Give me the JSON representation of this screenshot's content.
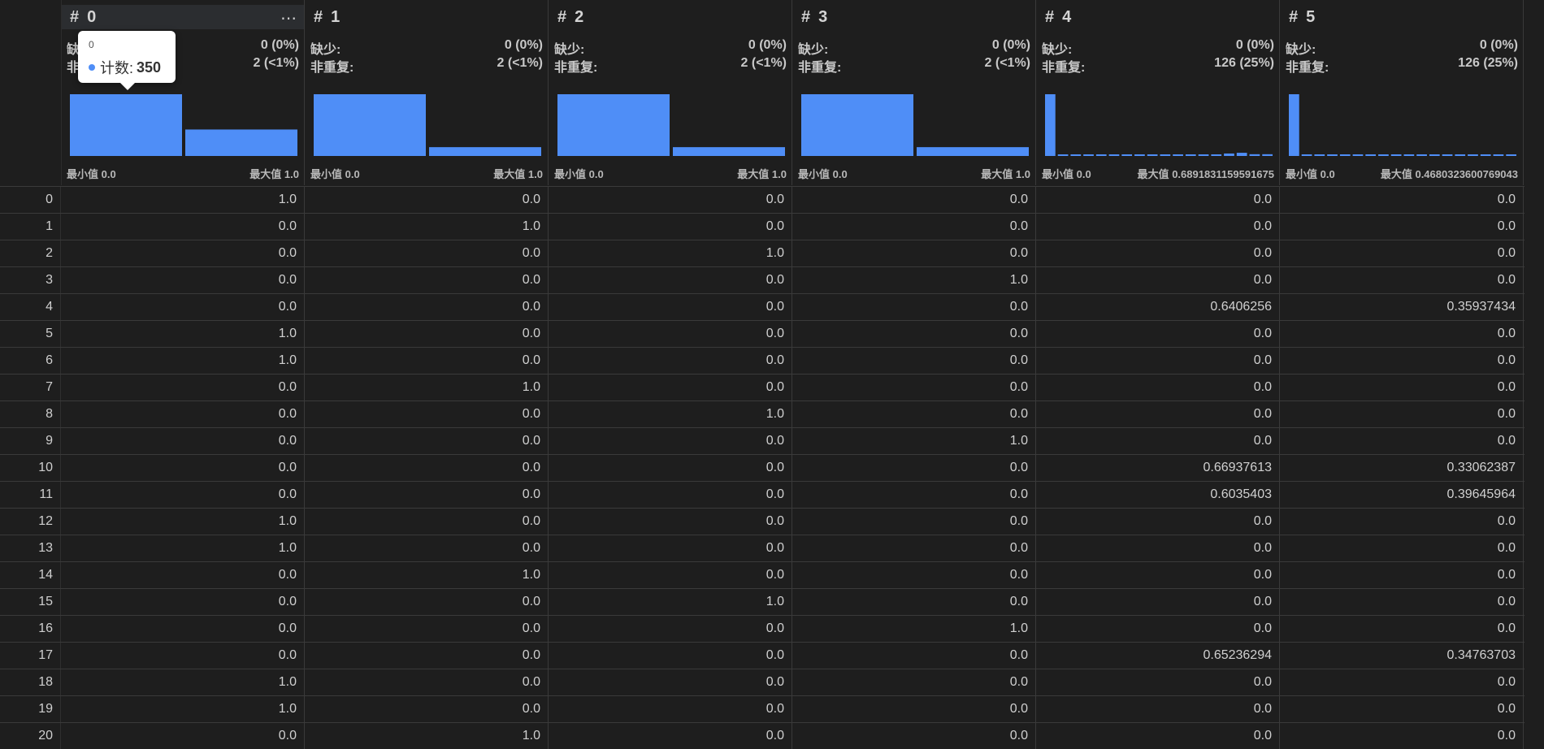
{
  "accent_color": "#4f8ef7",
  "labels": {
    "missing": "缺少:",
    "distinct": "非重复:",
    "min_prefix": "最小值",
    "max_prefix": "最大值",
    "col_hash": "#"
  },
  "columns": [
    {
      "name": "0",
      "missing": "0 (0%)",
      "distinct": "2 (<1%)",
      "min": "0.0",
      "max": "1.0"
    },
    {
      "name": "1",
      "missing": "0 (0%)",
      "distinct": "2 (<1%)",
      "min": "0.0",
      "max": "1.0"
    },
    {
      "name": "2",
      "missing": "0 (0%)",
      "distinct": "2 (<1%)",
      "min": "0.0",
      "max": "1.0"
    },
    {
      "name": "3",
      "missing": "0 (0%)",
      "distinct": "2 (<1%)",
      "min": "0.0",
      "max": "1.0"
    },
    {
      "name": "4",
      "missing": "0 (0%)",
      "distinct": "126 (25%)",
      "min": "0.0",
      "max": "0.6891831159591675"
    },
    {
      "name": "5",
      "missing": "0 (0%)",
      "distinct": "126 (25%)",
      "min": "0.0",
      "max": "0.4680323600769043"
    }
  ],
  "histograms": [
    [
      350,
      150
    ],
    [
      350,
      50
    ],
    [
      350,
      50
    ],
    [
      350,
      50
    ],
    [
      350,
      8,
      8,
      8,
      8,
      8,
      8,
      8,
      8,
      8,
      8,
      8,
      8,
      8,
      14,
      18,
      10,
      10
    ],
    [
      350,
      8,
      8,
      8,
      8,
      8,
      8,
      8,
      8,
      8,
      8,
      8,
      8,
      8,
      8,
      8,
      8,
      8
    ]
  ],
  "tooltip": {
    "title": "0",
    "label": "计数:",
    "value": "350"
  },
  "rows": [
    {
      "index": "0",
      "values": [
        "1.0",
        "0.0",
        "0.0",
        "0.0",
        "0.0",
        "0.0"
      ]
    },
    {
      "index": "1",
      "values": [
        "0.0",
        "1.0",
        "0.0",
        "0.0",
        "0.0",
        "0.0"
      ]
    },
    {
      "index": "2",
      "values": [
        "0.0",
        "0.0",
        "1.0",
        "0.0",
        "0.0",
        "0.0"
      ]
    },
    {
      "index": "3",
      "values": [
        "0.0",
        "0.0",
        "0.0",
        "1.0",
        "0.0",
        "0.0"
      ]
    },
    {
      "index": "4",
      "values": [
        "0.0",
        "0.0",
        "0.0",
        "0.0",
        "0.6406256",
        "0.35937434"
      ]
    },
    {
      "index": "5",
      "values": [
        "1.0",
        "0.0",
        "0.0",
        "0.0",
        "0.0",
        "0.0"
      ]
    },
    {
      "index": "6",
      "values": [
        "1.0",
        "0.0",
        "0.0",
        "0.0",
        "0.0",
        "0.0"
      ]
    },
    {
      "index": "7",
      "values": [
        "0.0",
        "1.0",
        "0.0",
        "0.0",
        "0.0",
        "0.0"
      ]
    },
    {
      "index": "8",
      "values": [
        "0.0",
        "0.0",
        "1.0",
        "0.0",
        "0.0",
        "0.0"
      ]
    },
    {
      "index": "9",
      "values": [
        "0.0",
        "0.0",
        "0.0",
        "1.0",
        "0.0",
        "0.0"
      ]
    },
    {
      "index": "10",
      "values": [
        "0.0",
        "0.0",
        "0.0",
        "0.0",
        "0.66937613",
        "0.33062387"
      ]
    },
    {
      "index": "11",
      "values": [
        "0.0",
        "0.0",
        "0.0",
        "0.0",
        "0.6035403",
        "0.39645964"
      ]
    },
    {
      "index": "12",
      "values": [
        "1.0",
        "0.0",
        "0.0",
        "0.0",
        "0.0",
        "0.0"
      ]
    },
    {
      "index": "13",
      "values": [
        "1.0",
        "0.0",
        "0.0",
        "0.0",
        "0.0",
        "0.0"
      ]
    },
    {
      "index": "14",
      "values": [
        "0.0",
        "1.0",
        "0.0",
        "0.0",
        "0.0",
        "0.0"
      ]
    },
    {
      "index": "15",
      "values": [
        "0.0",
        "0.0",
        "1.0",
        "0.0",
        "0.0",
        "0.0"
      ]
    },
    {
      "index": "16",
      "values": [
        "0.0",
        "0.0",
        "0.0",
        "1.0",
        "0.0",
        "0.0"
      ]
    },
    {
      "index": "17",
      "values": [
        "0.0",
        "0.0",
        "0.0",
        "0.0",
        "0.65236294",
        "0.34763703"
      ]
    },
    {
      "index": "18",
      "values": [
        "1.0",
        "0.0",
        "0.0",
        "0.0",
        "0.0",
        "0.0"
      ]
    },
    {
      "index": "19",
      "values": [
        "1.0",
        "0.0",
        "0.0",
        "0.0",
        "0.0",
        "0.0"
      ]
    },
    {
      "index": "20",
      "values": [
        "0.0",
        "1.0",
        "0.0",
        "0.0",
        "0.0",
        "0.0"
      ]
    }
  ]
}
